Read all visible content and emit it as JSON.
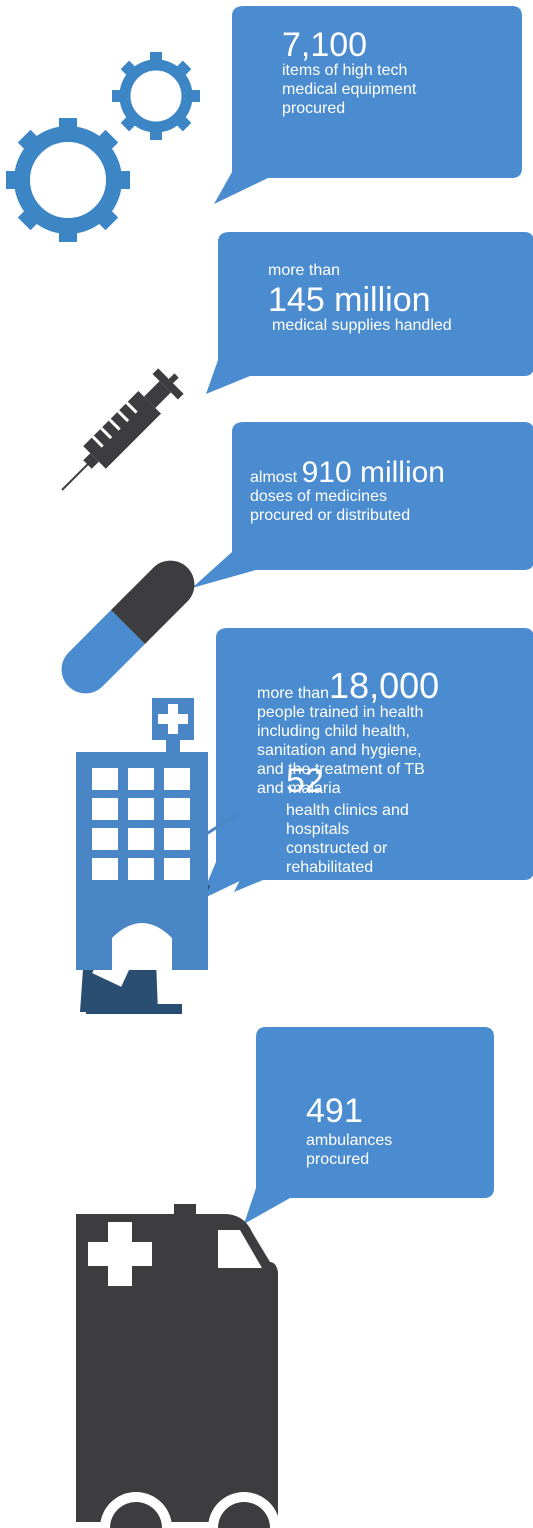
{
  "colors": {
    "bubble": "#4a8ccf",
    "gear": "#3d86c6",
    "dark": "#3d3d3f",
    "nurse_dark": "#294e72",
    "nurse_light": "#4a86c6"
  },
  "stats": [
    {
      "id": "equipment",
      "big": "7,100",
      "lines": [
        "items of high tech",
        "medical equipment",
        "procured"
      ],
      "icon": "gears-icon"
    },
    {
      "id": "supplies",
      "prefix": "more than",
      "big": "145 million",
      "lines": [
        "medical supplies handled"
      ],
      "icon": "syringe-icon"
    },
    {
      "id": "medicines",
      "prefix": "almost",
      "big": "910 million",
      "lines": [
        "doses of medicines",
        "procured or distributed"
      ],
      "icon": "pill-icon"
    },
    {
      "id": "training",
      "prefix": "more than",
      "big": "18,000",
      "lines": [
        "people trained in health",
        "including child health,",
        "sanitation and hygiene,",
        "and the treatment of TB",
        "and malaria"
      ],
      "icon": "nurse-teacher-icon"
    },
    {
      "id": "clinics",
      "big": "52",
      "lines": [
        "health clinics and",
        "hospitals",
        "constructed or",
        "rehabilitated"
      ],
      "icon": "hospital-icon"
    },
    {
      "id": "ambulances",
      "big": "491",
      "lines": [
        "ambulances",
        "procured"
      ],
      "icon": "ambulance-icon"
    }
  ]
}
